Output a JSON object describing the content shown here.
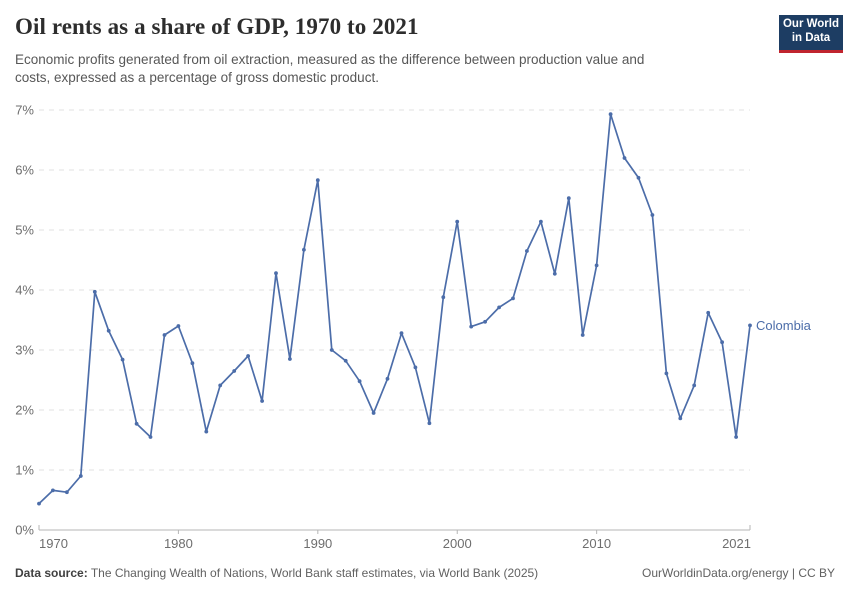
{
  "header": {
    "title": "Oil rents as a share of GDP, 1970 to 2021",
    "subtitle_lines": [
      "Economic profits generated from oil extraction, measured as the difference between production value and",
      "costs, expressed as a percentage of gross domestic product."
    ]
  },
  "logo": {
    "line1": "Our World",
    "line2": "in Data",
    "bg_color": "#1d3d63",
    "bar_color": "#c0242e"
  },
  "chart_data": {
    "type": "line",
    "title": "Oil rents as a share of GDP, 1970 to 2021",
    "xlabel": "",
    "ylabel": "",
    "xlim": [
      1970,
      2021
    ],
    "ylim": [
      0,
      7
    ],
    "grid": "horizontal-dashed",
    "legend_position": "label-at-line-end",
    "xticks": [
      1970,
      1980,
      1990,
      2000,
      2010,
      2021
    ],
    "yticks": {
      "values": [
        0,
        1,
        2,
        3,
        4,
        5,
        6,
        7
      ],
      "labels": [
        "0%",
        "1%",
        "2%",
        "3%",
        "4%",
        "5%",
        "6%",
        "7%"
      ]
    },
    "axis_color": "#b5b5b5",
    "gridline_color": "#e0e0e0",
    "series": [
      {
        "name": "Colombia",
        "color": "#4c6da9",
        "x": [
          1970,
          1971,
          1972,
          1973,
          1974,
          1975,
          1976,
          1977,
          1978,
          1979,
          1980,
          1981,
          1982,
          1983,
          1984,
          1985,
          1986,
          1987,
          1988,
          1989,
          1990,
          1991,
          1992,
          1993,
          1994,
          1995,
          1996,
          1997,
          1998,
          1999,
          2000,
          2001,
          2002,
          2003,
          2004,
          2005,
          2006,
          2007,
          2008,
          2009,
          2010,
          2011,
          2012,
          2013,
          2014,
          2015,
          2016,
          2017,
          2018,
          2019,
          2020,
          2021
        ],
        "values": [
          0.44,
          0.66,
          0.63,
          0.9,
          3.97,
          3.32,
          2.84,
          1.77,
          1.55,
          3.25,
          3.4,
          2.78,
          1.64,
          2.41,
          2.65,
          2.9,
          2.15,
          4.28,
          2.85,
          4.67,
          5.83,
          3.0,
          2.82,
          2.48,
          1.95,
          2.52,
          3.28,
          2.71,
          1.78,
          3.88,
          5.14,
          3.39,
          3.47,
          3.71,
          3.86,
          4.65,
          5.14,
          4.27,
          5.53,
          3.25,
          4.41,
          6.93,
          6.2,
          5.87,
          5.25,
          2.61,
          1.86,
          2.41,
          3.62,
          3.13,
          1.55,
          3.41
        ]
      }
    ]
  },
  "footer": {
    "source_label": "Data source:",
    "source_text": "The Changing Wealth of Nations, World Bank staff estimates, via World Bank (2025)",
    "credit": "OurWorldinData.org/energy | CC BY"
  }
}
